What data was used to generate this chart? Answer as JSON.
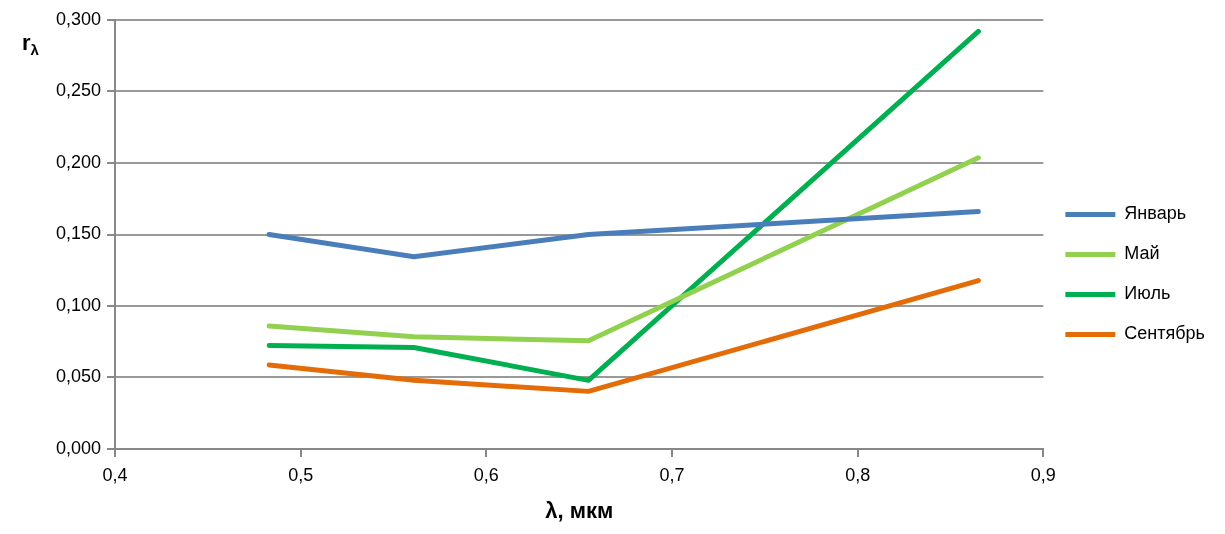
{
  "chart_data": {
    "type": "line",
    "xlabel": "λ, мкм",
    "ylabel": "r$_{λ}$",
    "x": [
      0.483,
      0.561,
      0.655,
      0.865
    ],
    "series": [
      {
        "name": "Январь",
        "color": "#4a7ebb",
        "values": [
          0.15,
          0.1345,
          0.15,
          0.166
        ]
      },
      {
        "name": "Май",
        "color": "#92d050",
        "values": [
          0.086,
          0.0785,
          0.0757,
          0.2036
        ]
      },
      {
        "name": "Июль",
        "color": "#00b050",
        "values": [
          0.0724,
          0.071,
          0.048,
          0.292
        ]
      },
      {
        "name": "Сентябрь",
        "color": "#e36c09",
        "values": [
          0.0588,
          0.048,
          0.0403,
          0.1178
        ]
      }
    ],
    "xlim": [
      0.4,
      0.9
    ],
    "xticks": [
      {
        "value": 0.4,
        "label": "0,4"
      },
      {
        "value": 0.5,
        "label": "0,5"
      },
      {
        "value": 0.6,
        "label": "0,6"
      },
      {
        "value": 0.7,
        "label": "0,7"
      },
      {
        "value": 0.8,
        "label": "0,8"
      },
      {
        "value": 0.9,
        "label": "0,9"
      }
    ],
    "ylim": [
      0,
      0.3
    ],
    "yticks": [
      {
        "value": 0,
        "label": "0,000"
      },
      {
        "value": 0.05,
        "label": "0,050"
      },
      {
        "value": 0.1,
        "label": "0,100"
      },
      {
        "value": 0.15,
        "label": "0,150"
      },
      {
        "value": 0.2,
        "label": "0,200"
      },
      {
        "value": 0.25,
        "label": "0,250"
      },
      {
        "value": 0.3,
        "label": "0,300"
      }
    ],
    "grid": "y",
    "legend": "right",
    "marker": "none",
    "line_style": "solid"
  }
}
